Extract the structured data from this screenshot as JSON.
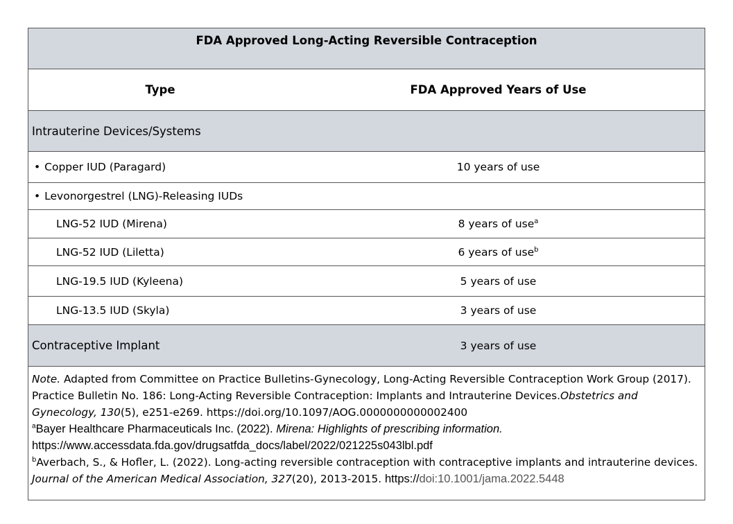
{
  "table": {
    "title": "FDA Approved Long-Acting Reversible Contraception",
    "headers": {
      "type": "Type",
      "years": "FDA Approved Years of Use"
    },
    "sections": {
      "iud": "Intrauterine Devices/Systems",
      "implant": {
        "label": "Contraceptive Implant",
        "years": "3 years of use"
      }
    },
    "bullet": "•",
    "rows": [
      {
        "type": "Copper IUD (Paragard)",
        "years": "10 years of use",
        "sup": ""
      },
      {
        "type": "Levonorgestrel (LNG)-Releasing IUDs",
        "years": "",
        "sup": ""
      },
      {
        "type": "LNG-52 IUD (Mirena)",
        "years": "8 years of use",
        "sup": "a"
      },
      {
        "type": "LNG-52 IUD (Liletta)",
        "years": "6 years of use",
        "sup": "b"
      },
      {
        "type": "LNG-19.5 IUD (Kyleena)",
        "years": "5 years of use",
        "sup": ""
      },
      {
        "type": "LNG-13.5 IUD (Skyla)",
        "years": "3 years of use",
        "sup": ""
      }
    ]
  },
  "note": {
    "label": "Note.",
    "text1": " Adapted from Committee on Practice Bulletins-Gynecology, Long-Acting Reversible Contraception Work Group (2017). Practice Bulletin No. 186: Long-Acting Reversible Contraception: Implants and Intrauterine Devices.",
    "journal1": "Obstetrics and Gynecology, 130",
    "text2": "(5), e251-e269. https://doi.org/10.1097/AOG.0000000000002400",
    "fn_a": {
      "mark": "a",
      "text": "Bayer Healthcare Pharmaceuticals Inc. (2022). ",
      "title": "Mirena: Highlights of prescribing information.",
      "url": "https://www.accessdata.fda.gov/drugsatfda_docs/label/2022/021225s043lbl.pdf"
    },
    "fn_b": {
      "mark": "b",
      "text": "Averbach, S., & Hofler, L. (2022). Long-acting reversible contraception with contraceptive implants and intrauterine devices. ",
      "journal": "Journal of the American Medical Association, 327",
      "text2": "(20), 2013-2015. ",
      "url_prefix": "https://",
      "url_rest": "doi:10.1001/jama.2022.5448"
    }
  }
}
